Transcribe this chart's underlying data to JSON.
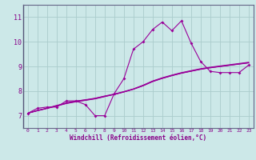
{
  "title": "",
  "xlabel": "Windchill (Refroidissement éolien,°C)",
  "bg_color": "#cce8e8",
  "grid_color": "#aacccc",
  "line_color": "#990099",
  "axis_color": "#666688",
  "text_color": "#880088",
  "xlim": [
    -0.5,
    23.5
  ],
  "ylim": [
    6.5,
    11.5
  ],
  "yticks": [
    7,
    8,
    9,
    10,
    11
  ],
  "xticks": [
    0,
    1,
    2,
    3,
    4,
    5,
    6,
    7,
    8,
    9,
    10,
    11,
    12,
    13,
    14,
    15,
    16,
    17,
    18,
    19,
    20,
    21,
    22,
    23
  ],
  "series": [
    [
      7.1,
      7.3,
      7.35,
      7.35,
      7.6,
      7.6,
      7.45,
      7.0,
      7.0,
      7.9,
      8.5,
      9.7,
      10.0,
      10.5,
      10.8,
      10.45,
      10.85,
      9.95,
      9.2,
      8.8,
      8.75,
      8.75,
      8.75,
      9.05
    ],
    [
      7.1,
      7.22,
      7.3,
      7.4,
      7.52,
      7.6,
      7.64,
      7.7,
      7.79,
      7.86,
      7.96,
      8.08,
      8.22,
      8.4,
      8.52,
      8.63,
      8.73,
      8.81,
      8.89,
      8.95,
      9.0,
      9.05,
      9.1,
      9.15
    ],
    [
      7.1,
      7.21,
      7.31,
      7.42,
      7.51,
      7.59,
      7.65,
      7.71,
      7.8,
      7.88,
      7.98,
      8.09,
      8.24,
      8.41,
      8.54,
      8.65,
      8.75,
      8.83,
      8.91,
      8.97,
      9.02,
      9.07,
      9.12,
      9.17
    ],
    [
      7.1,
      7.2,
      7.3,
      7.4,
      7.5,
      7.57,
      7.63,
      7.69,
      7.78,
      7.87,
      7.97,
      8.08,
      8.22,
      8.39,
      8.52,
      8.63,
      8.73,
      8.81,
      8.89,
      8.95,
      9.0,
      9.05,
      9.1,
      9.15
    ],
    [
      7.1,
      7.2,
      7.29,
      7.39,
      7.49,
      7.56,
      7.62,
      7.68,
      7.77,
      7.86,
      7.96,
      8.07,
      8.21,
      8.38,
      8.51,
      8.62,
      8.72,
      8.8,
      8.88,
      8.94,
      8.99,
      9.04,
      9.09,
      9.14
    ]
  ]
}
